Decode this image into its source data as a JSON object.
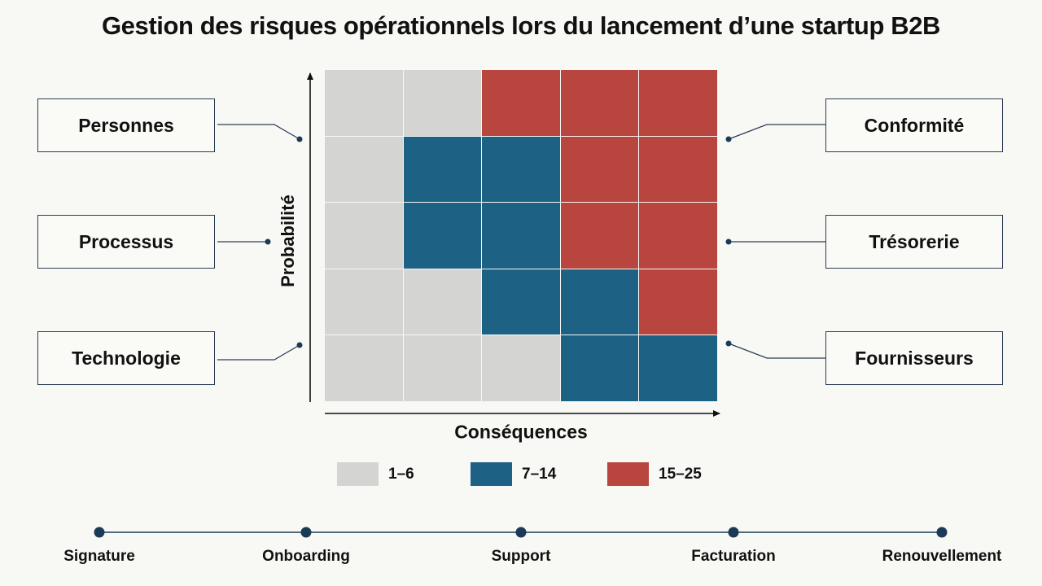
{
  "title": "Gestion des risques opérationnels lors du lancement d’une startup B2B",
  "left_categories": [
    "Personnes",
    "Processus",
    "Technologie"
  ],
  "right_categories": [
    "Conformité",
    "Trésorerie",
    "Fournisseurs"
  ],
  "axes": {
    "y_label": "Probabilité",
    "x_label": "Conséquences"
  },
  "matrix": {
    "rows": 5,
    "cols": 5,
    "levels_top_to_bottom": [
      [
        "low",
        "low",
        "high",
        "high",
        "high"
      ],
      [
        "low",
        "medium",
        "medium",
        "high",
        "high"
      ],
      [
        "low",
        "medium",
        "medium",
        "high",
        "high"
      ],
      [
        "low",
        "low",
        "medium",
        "medium",
        "high"
      ],
      [
        "low",
        "low",
        "low",
        "medium",
        "medium"
      ]
    ]
  },
  "legend": [
    {
      "key": "low",
      "label": "1–6",
      "color": "#d4d5d3"
    },
    {
      "key": "medium",
      "label": "7–14",
      "color": "#1d6184"
    },
    {
      "key": "high",
      "label": "15–25",
      "color": "#b8453e"
    }
  ],
  "timeline": {
    "color": "#1b3a57",
    "stages": [
      "Signature",
      "Onboarding",
      "Support",
      "Facturation",
      "Renouvellement"
    ]
  }
}
